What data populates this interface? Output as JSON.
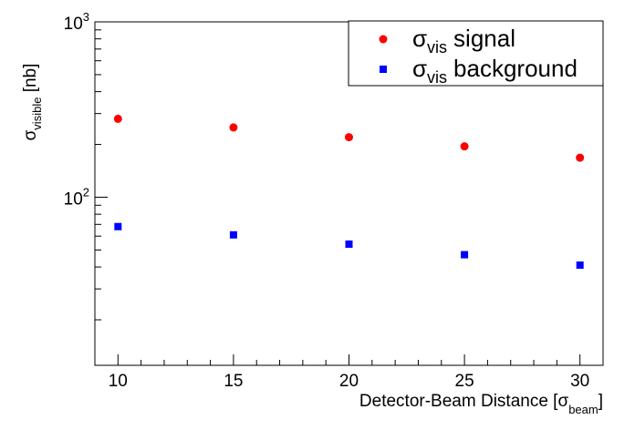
{
  "chart_data": {
    "type": "scatter",
    "xlabel": "Detector-Beam Distance [σ",
    "xlabel_sub": "beam",
    "xlabel_tail": "]",
    "ylabel": "σ",
    "ylabel_sub": "visible",
    "ylabel_tail": " [nb]",
    "xlim": [
      9.0,
      31.0
    ],
    "ylim": [
      11,
      1000
    ],
    "ylog": true,
    "x_ticks": [
      10,
      15,
      20,
      25,
      30
    ],
    "y_major_ticks": [
      100,
      1000
    ],
    "y_tick_labels": [
      {
        "base": "10",
        "exp": "2"
      },
      {
        "base": "10",
        "exp": "3"
      }
    ],
    "legend": {
      "placement": "top-right"
    },
    "series": [
      {
        "name": "signal",
        "name_prefix": "σ",
        "name_sub": "vis",
        "marker": "circle",
        "color": "#ff0000",
        "x": [
          10,
          15,
          20,
          25,
          30
        ],
        "y": [
          280,
          250,
          220,
          195,
          168
        ]
      },
      {
        "name": "background",
        "name_prefix": "σ",
        "name_sub": "vis",
        "marker": "square",
        "color": "#0000ff",
        "x": [
          10,
          15,
          20,
          25,
          30
        ],
        "y": [
          68,
          61,
          54,
          47,
          41
        ]
      }
    ]
  }
}
